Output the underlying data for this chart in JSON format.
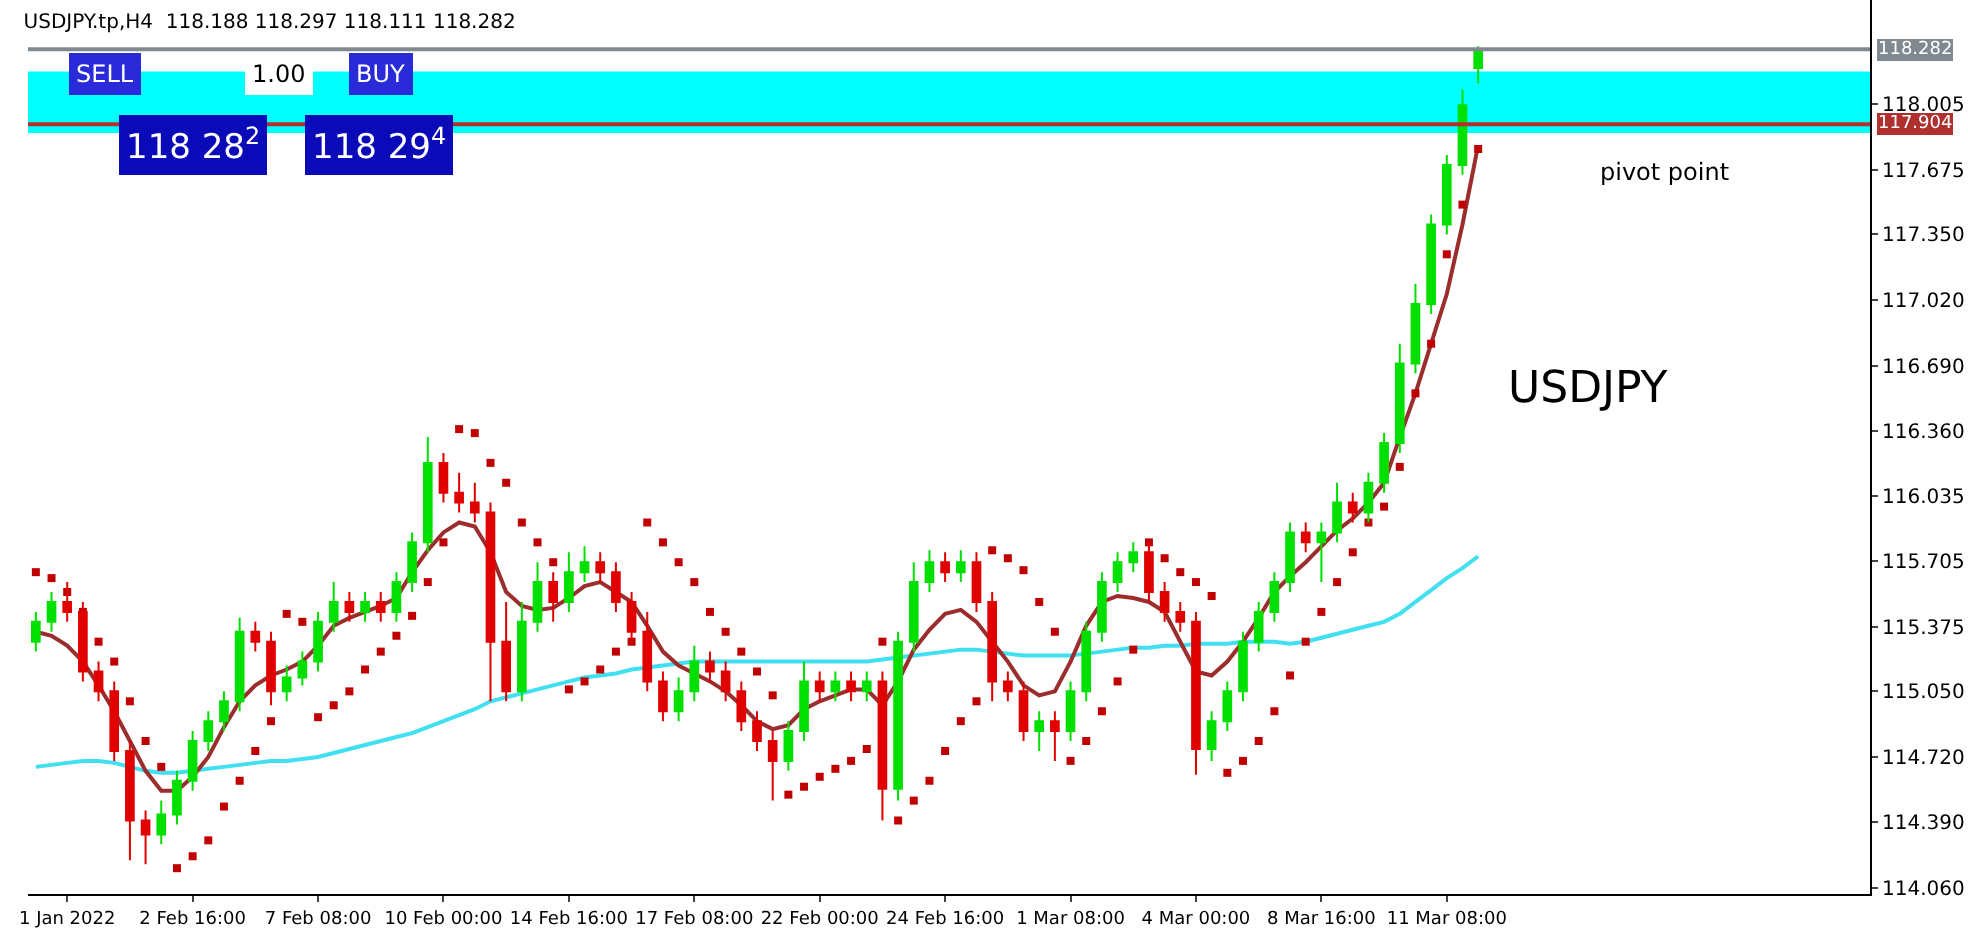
{
  "chart_data": {
    "type": "candlestick",
    "title": "USDJPY.tp,H4  118.188 118.297 118.111 118.282",
    "categories": [
      null,
      null,
      "1 Jan 2022",
      null,
      null,
      null,
      null,
      null,
      null,
      null,
      "2 Feb 16:00",
      null,
      null,
      null,
      null,
      null,
      null,
      null,
      "7 Feb 08:00",
      null,
      null,
      null,
      null,
      null,
      null,
      null,
      "10 Feb 00:00",
      null,
      null,
      null,
      null,
      null,
      null,
      null,
      "14 Feb 16:00",
      null,
      null,
      null,
      null,
      null,
      null,
      null,
      "17 Feb 08:00",
      null,
      null,
      null,
      null,
      null,
      null,
      null,
      "22 Feb 00:00",
      null,
      null,
      null,
      null,
      null,
      null,
      null,
      "24 Feb 16:00",
      null,
      null,
      null,
      null,
      null,
      null,
      null,
      "1 Mar 08:00",
      null,
      null,
      null,
      null,
      null,
      null,
      null,
      "4 Mar 00:00",
      null,
      null,
      null,
      null,
      null,
      null,
      null,
      "8 Mar 16:00",
      null,
      null,
      null,
      null,
      null,
      null,
      null,
      "11 Mar 08:00",
      null,
      null
    ],
    "ohlc": [
      [
        115.3,
        115.45,
        115.25,
        115.4
      ],
      [
        115.4,
        115.55,
        115.35,
        115.5
      ],
      [
        115.5,
        115.6,
        115.4,
        115.45
      ],
      [
        115.45,
        115.5,
        115.1,
        115.15
      ],
      [
        115.15,
        115.2,
        115.0,
        115.05
      ],
      [
        115.05,
        115.1,
        114.7,
        114.75
      ],
      [
        114.75,
        114.8,
        114.2,
        114.4
      ],
      [
        114.4,
        114.45,
        114.18,
        114.33
      ],
      [
        114.33,
        114.5,
        114.28,
        114.43
      ],
      [
        114.43,
        114.65,
        114.38,
        114.6
      ],
      [
        114.6,
        114.85,
        114.55,
        114.8
      ],
      [
        114.8,
        114.95,
        114.75,
        114.9
      ],
      [
        114.9,
        115.05,
        114.85,
        115.0
      ],
      [
        115.0,
        115.42,
        114.95,
        115.35
      ],
      [
        115.35,
        115.4,
        115.25,
        115.3
      ],
      [
        115.3,
        115.35,
        114.98,
        115.05
      ],
      [
        115.05,
        115.18,
        115.0,
        115.12
      ],
      [
        115.12,
        115.25,
        115.08,
        115.2
      ],
      [
        115.2,
        115.45,
        115.15,
        115.4
      ],
      [
        115.4,
        115.6,
        115.35,
        115.5
      ],
      [
        115.5,
        115.55,
        115.4,
        115.45
      ],
      [
        115.45,
        115.55,
        115.4,
        115.5
      ],
      [
        115.5,
        115.55,
        115.4,
        115.45
      ],
      [
        115.45,
        115.65,
        115.4,
        115.6
      ],
      [
        115.6,
        115.85,
        115.55,
        115.8
      ],
      [
        115.8,
        116.33,
        115.75,
        116.2
      ],
      [
        116.2,
        116.25,
        116.0,
        116.05
      ],
      [
        116.05,
        116.15,
        115.95,
        116.0
      ],
      [
        116.0,
        116.1,
        115.9,
        115.95
      ],
      [
        115.95,
        116.0,
        115.0,
        115.3
      ],
      [
        115.3,
        115.5,
        115.0,
        115.05
      ],
      [
        115.05,
        115.5,
        115.0,
        115.4
      ],
      [
        115.4,
        115.7,
        115.35,
        115.6
      ],
      [
        115.6,
        115.65,
        115.4,
        115.5
      ],
      [
        115.5,
        115.75,
        115.45,
        115.65
      ],
      [
        115.65,
        115.78,
        115.6,
        115.7
      ],
      [
        115.7,
        115.75,
        115.6,
        115.65
      ],
      [
        115.65,
        115.7,
        115.45,
        115.5
      ],
      [
        115.5,
        115.55,
        115.3,
        115.35
      ],
      [
        115.35,
        115.45,
        115.05,
        115.1
      ],
      [
        115.1,
        115.15,
        114.9,
        114.95
      ],
      [
        114.95,
        115.12,
        114.9,
        115.05
      ],
      [
        115.05,
        115.28,
        115.0,
        115.2
      ],
      [
        115.2,
        115.25,
        115.1,
        115.15
      ],
      [
        115.15,
        115.2,
        115.0,
        115.05
      ],
      [
        115.05,
        115.1,
        114.85,
        114.9
      ],
      [
        114.9,
        114.95,
        114.75,
        114.8
      ],
      [
        114.8,
        114.85,
        114.5,
        114.7
      ],
      [
        114.7,
        114.9,
        114.65,
        114.85
      ],
      [
        114.85,
        115.2,
        114.8,
        115.1
      ],
      [
        115.1,
        115.15,
        115.0,
        115.05
      ],
      [
        115.05,
        115.15,
        115.0,
        115.1
      ],
      [
        115.1,
        115.15,
        115.0,
        115.05
      ],
      [
        115.05,
        115.15,
        115.0,
        115.1
      ],
      [
        115.1,
        115.15,
        114.4,
        114.56
      ],
      [
        114.56,
        115.35,
        114.5,
        115.3
      ],
      [
        115.3,
        115.7,
        115.25,
        115.6
      ],
      [
        115.6,
        115.76,
        115.55,
        115.7
      ],
      [
        115.7,
        115.75,
        115.6,
        115.65
      ],
      [
        115.65,
        115.76,
        115.6,
        115.7
      ],
      [
        115.7,
        115.75,
        115.45,
        115.5
      ],
      [
        115.5,
        115.55,
        115.0,
        115.1
      ],
      [
        115.1,
        115.15,
        115.0,
        115.05
      ],
      [
        115.05,
        115.1,
        114.8,
        114.85
      ],
      [
        114.85,
        114.95,
        114.75,
        114.9
      ],
      [
        114.9,
        114.95,
        114.7,
        114.85
      ],
      [
        114.85,
        115.1,
        114.8,
        115.05
      ],
      [
        115.05,
        115.4,
        115.0,
        115.35
      ],
      [
        115.35,
        115.65,
        115.3,
        115.6
      ],
      [
        115.6,
        115.75,
        115.55,
        115.7
      ],
      [
        115.7,
        115.8,
        115.65,
        115.75
      ],
      [
        115.75,
        115.8,
        115.5,
        115.55
      ],
      [
        115.55,
        115.6,
        115.4,
        115.45
      ],
      [
        115.45,
        115.5,
        115.35,
        115.4
      ],
      [
        115.4,
        115.45,
        114.63,
        114.76
      ],
      [
        114.76,
        114.95,
        114.7,
        114.9
      ],
      [
        114.9,
        115.1,
        114.85,
        115.05
      ],
      [
        115.05,
        115.35,
        115.0,
        115.3
      ],
      [
        115.3,
        115.5,
        115.25,
        115.45
      ],
      [
        115.45,
        115.65,
        115.4,
        115.6
      ],
      [
        115.6,
        115.9,
        115.55,
        115.85
      ],
      [
        115.85,
        115.9,
        115.75,
        115.8
      ],
      [
        115.8,
        115.9,
        115.6,
        115.85
      ],
      [
        115.85,
        116.1,
        115.8,
        116.0
      ],
      [
        116.0,
        116.05,
        115.9,
        115.95
      ],
      [
        115.95,
        116.15,
        115.9,
        116.1
      ],
      [
        116.1,
        116.35,
        116.05,
        116.3
      ],
      [
        116.3,
        116.8,
        116.25,
        116.7
      ],
      [
        116.7,
        117.1,
        116.65,
        117.0
      ],
      [
        117.0,
        117.45,
        116.95,
        117.4
      ],
      [
        117.4,
        117.75,
        117.35,
        117.7
      ],
      [
        117.7,
        118.08,
        117.65,
        118.0
      ],
      [
        118.188,
        118.297,
        118.111,
        118.282
      ]
    ],
    "colors": [
      "#00e000",
      "#00e000",
      "#e00000",
      "#e00000",
      "#e00000",
      "#e00000",
      "#e00000",
      "#e00000",
      "#00e000",
      "#00e000",
      "#00e000",
      "#00e000",
      "#00e000",
      "#00e000",
      "#e00000",
      "#e00000",
      "#00e000",
      "#00e000",
      "#00e000",
      "#00e000",
      "#e00000",
      "#00e000",
      "#e00000",
      "#00e000",
      "#00e000",
      "#00e000",
      "#e00000",
      "#e00000",
      "#e00000",
      "#e00000",
      "#e00000",
      "#00e000",
      "#00e000",
      "#e00000",
      "#00e000",
      "#00e000",
      "#e00000",
      "#e00000",
      "#e00000",
      "#e00000",
      "#e00000",
      "#00e000",
      "#00e000",
      "#e00000",
      "#e00000",
      "#e00000",
      "#e00000",
      "#e00000",
      "#00e000",
      "#00e000",
      "#e00000",
      "#00e000",
      "#e00000",
      "#00e000",
      "#e00000",
      "#00e000",
      "#00e000",
      "#00e000",
      "#e00000",
      "#00e000",
      "#e00000",
      "#e00000",
      "#e00000",
      "#e00000",
      "#00e000",
      "#e00000",
      "#00e000",
      "#00e000",
      "#00e000",
      "#00e000",
      "#00e000",
      "#e00000",
      "#e00000",
      "#e00000",
      "#e00000",
      "#00e000",
      "#00e000",
      "#00e000",
      "#00e000",
      "#00e000",
      "#00e000",
      "#e00000",
      "#00e000",
      "#00e000",
      "#e00000",
      "#00e000",
      "#00e000",
      "#00e000",
      "#00e000",
      "#00e000",
      "#00e000",
      "#00e000",
      "#00e000"
    ],
    "series": [
      {
        "type": "line",
        "color": "#40e0f0",
        "values": [
          114.67,
          114.68,
          114.69,
          114.7,
          114.7,
          114.69,
          114.67,
          114.65,
          114.64,
          114.64,
          114.65,
          114.66,
          114.67,
          114.68,
          114.69,
          114.7,
          114.7,
          114.71,
          114.72,
          114.74,
          114.76,
          114.78,
          114.8,
          114.82,
          114.84,
          114.87,
          114.9,
          114.93,
          114.96,
          115.0,
          115.02,
          115.04,
          115.06,
          115.08,
          115.1,
          115.12,
          115.13,
          115.14,
          115.16,
          115.17,
          115.18,
          115.19,
          115.2,
          115.2,
          115.2,
          115.2,
          115.2,
          115.2,
          115.2,
          115.2,
          115.2,
          115.2,
          115.2,
          115.2,
          115.21,
          115.22,
          115.23,
          115.24,
          115.25,
          115.26,
          115.26,
          115.25,
          115.24,
          115.23,
          115.23,
          115.23,
          115.23,
          115.24,
          115.25,
          115.26,
          115.27,
          115.27,
          115.28,
          115.28,
          115.29,
          115.29,
          115.29,
          115.3,
          115.3,
          115.3,
          115.29,
          115.3,
          115.32,
          115.34,
          115.36,
          115.38,
          115.4,
          115.44,
          115.5,
          115.56,
          115.62,
          115.67,
          115.73
        ]
      },
      {
        "type": "line",
        "color": "#9b2d2d",
        "values": [
          115.35,
          115.33,
          115.28,
          115.2,
          115.08,
          114.95,
          114.8,
          114.65,
          114.55,
          114.55,
          114.62,
          114.72,
          114.87,
          115.0,
          115.08,
          115.13,
          115.16,
          115.2,
          115.28,
          115.38,
          115.42,
          115.45,
          115.48,
          115.52,
          115.65,
          115.76,
          115.85,
          115.9,
          115.88,
          115.75,
          115.55,
          115.48,
          115.46,
          115.47,
          115.52,
          115.58,
          115.6,
          115.55,
          115.5,
          115.38,
          115.25,
          115.18,
          115.14,
          115.1,
          115.05,
          114.98,
          114.9,
          114.86,
          114.88,
          114.96,
          115.0,
          115.03,
          115.06,
          115.06,
          114.98,
          115.1,
          115.26,
          115.36,
          115.44,
          115.46,
          115.4,
          115.3,
          115.2,
          115.08,
          115.03,
          115.05,
          115.2,
          115.38,
          115.5,
          115.53,
          115.52,
          115.5,
          115.45,
          115.3,
          115.15,
          115.13,
          115.2,
          115.3,
          115.42,
          115.55,
          115.63,
          115.7,
          115.78,
          115.86,
          115.92,
          116.0,
          116.1,
          116.33,
          116.55,
          116.8,
          117.05,
          117.4,
          117.8
        ]
      },
      {
        "type": "scatter",
        "color": "#c00000",
        "marker": "square",
        "values": [
          115.65,
          115.62,
          115.55,
          115.45,
          115.3,
          115.2,
          115.0,
          114.8,
          114.67,
          114.16,
          114.22,
          114.3,
          114.47,
          114.6,
          114.75,
          114.9,
          115.44,
          115.4,
          114.92,
          114.98,
          115.05,
          115.16,
          115.25,
          115.33,
          115.43,
          115.6,
          115.8,
          116.37,
          116.35,
          116.2,
          116.1,
          115.9,
          115.8,
          115.7,
          115.06,
          115.1,
          115.16,
          115.25,
          115.3,
          115.9,
          115.8,
          115.7,
          115.6,
          115.45,
          115.35,
          115.25,
          115.15,
          115.03,
          114.53,
          114.57,
          114.62,
          114.66,
          114.7,
          114.76,
          115.3,
          114.4,
          114.5,
          114.6,
          114.75,
          114.9,
          115.0,
          115.76,
          115.72,
          115.66,
          115.5,
          115.35,
          114.7,
          114.8,
          114.95,
          115.1,
          115.26,
          115.8,
          115.72,
          115.65,
          115.6,
          115.53,
          114.64,
          114.7,
          114.8,
          114.95,
          115.13,
          115.3,
          115.45,
          115.6,
          115.75,
          115.9,
          115.98,
          116.18,
          116.55,
          116.8,
          117.25,
          117.5,
          117.78
        ]
      }
    ],
    "ylim": [
      114.03,
      118.53
    ],
    "yticks": [
      {
        "value": 114.06,
        "label": "114.060"
      },
      {
        "value": 114.39,
        "label": "114.390"
      },
      {
        "value": 114.72,
        "label": "114.720"
      },
      {
        "value": 115.05,
        "label": "115.050"
      },
      115.375,
      {
        "value": 115.705,
        "label": "115.705"
      },
      {
        "value": 116.035,
        "label": "116.035"
      },
      {
        "value": 116.36,
        "label": "116.360"
      },
      {
        "value": 116.69,
        "label": "116.690"
      },
      {
        "value": 117.02,
        "label": "117.020"
      },
      {
        "value": 117.35,
        "label": "117.350"
      },
      117.675,
      {
        "value": 118.005,
        "label": "118.005"
      }
    ],
    "bands": [
      {
        "axis": "y",
        "from": 117.86,
        "to": 118.17,
        "color": "#00ffff"
      }
    ],
    "ref_lines": [
      {
        "axis": "y",
        "value": 117.904,
        "label": "117.904",
        "color": "#b03030"
      },
      {
        "axis": "y",
        "value": 118.282,
        "label": "118.282",
        "color": "#808890"
      }
    ],
    "annotations": [
      "SELL",
      "1.00",
      "BUY",
      "118 28$^{2}$",
      "118 29$^{4}$",
      "pivot point",
      "USDJPY"
    ],
    "grid": false
  }
}
